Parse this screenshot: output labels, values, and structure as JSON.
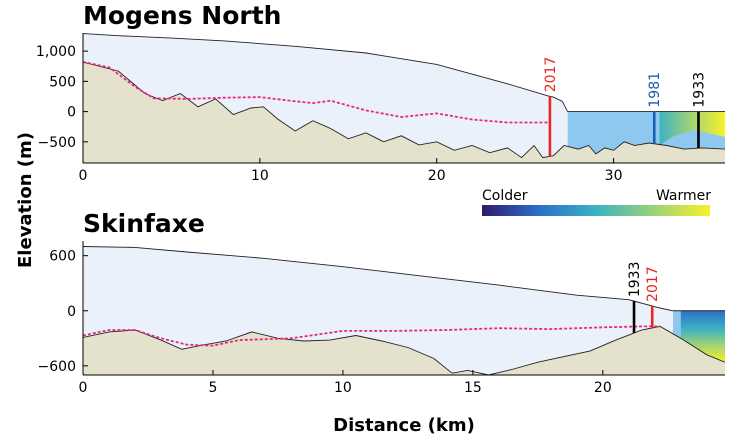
{
  "chart_data": [
    {
      "type": "area",
      "title": "Mogens North",
      "xlabel": "Distance (km)",
      "ylabel": "Elevation (m)",
      "xlim": [
        0,
        36.3
      ],
      "ylim": [
        -850,
        1300
      ],
      "xticks": [
        0,
        10,
        20,
        30
      ],
      "yticks": [
        -500,
        0,
        500,
        1000
      ],
      "ytick_labels": [
        "−500",
        "0",
        "500",
        "1,000"
      ],
      "ice_surface": [
        [
          0,
          1290
        ],
        [
          2,
          1255
        ],
        [
          5,
          1215
        ],
        [
          8,
          1170
        ],
        [
          12,
          1080
        ],
        [
          16,
          970
        ],
        [
          20,
          780
        ],
        [
          24,
          460
        ],
        [
          26.3,
          260
        ],
        [
          26.6,
          240
        ],
        [
          27.1,
          170
        ],
        [
          27.4,
          0
        ]
      ],
      "bed": [
        [
          0,
          820
        ],
        [
          2,
          670
        ],
        [
          3.5,
          300
        ],
        [
          4.5,
          180
        ],
        [
          5.5,
          300
        ],
        [
          6.5,
          80
        ],
        [
          7.5,
          210
        ],
        [
          8.5,
          -50
        ],
        [
          9.5,
          60
        ],
        [
          10.2,
          80
        ],
        [
          11,
          -120
        ],
        [
          12,
          -320
        ],
        [
          13,
          -150
        ],
        [
          14,
          -280
        ],
        [
          15,
          -450
        ],
        [
          16,
          -350
        ],
        [
          17,
          -500
        ],
        [
          18,
          -400
        ],
        [
          19,
          -550
        ],
        [
          20,
          -500
        ],
        [
          21,
          -640
        ],
        [
          22,
          -560
        ],
        [
          23,
          -680
        ],
        [
          24,
          -600
        ],
        [
          24.8,
          -760
        ],
        [
          25.5,
          -560
        ],
        [
          26,
          -760
        ],
        [
          26.6,
          -730
        ],
        [
          27.2,
          -560
        ],
        [
          28,
          -620
        ],
        [
          28.6,
          -560
        ],
        [
          29,
          -700
        ],
        [
          29.5,
          -600
        ],
        [
          30,
          -640
        ],
        [
          30.6,
          -500
        ],
        [
          31.2,
          -560
        ],
        [
          32,
          -520
        ],
        [
          33,
          -560
        ],
        [
          34,
          -620
        ],
        [
          35,
          -600
        ],
        [
          36.3,
          -620
        ]
      ],
      "melt_line": [
        [
          0,
          820
        ],
        [
          1.5,
          730
        ],
        [
          3,
          400
        ],
        [
          4,
          220
        ],
        [
          6,
          210
        ],
        [
          8,
          230
        ],
        [
          10,
          240
        ],
        [
          12,
          170
        ],
        [
          13,
          140
        ],
        [
          14,
          180
        ],
        [
          16,
          20
        ],
        [
          18,
          -90
        ],
        [
          20,
          -30
        ],
        [
          22,
          -130
        ],
        [
          24,
          -180
        ],
        [
          26.4,
          -180
        ]
      ],
      "profiles": [
        {
          "year": "2017",
          "x": 26.4,
          "color": "#e8281e"
        },
        {
          "year": "1981",
          "x": 32.3,
          "color": "#1a5bb5"
        },
        {
          "year": "1933",
          "x": 34.8,
          "color": "#000000"
        }
      ]
    },
    {
      "type": "area",
      "title": "Skinfaxe",
      "xlabel": "Distance (km)",
      "ylabel": "Elevation (m)",
      "xlim": [
        0,
        24.7
      ],
      "ylim": [
        -700,
        760
      ],
      "xticks": [
        0,
        5,
        10,
        15,
        20
      ],
      "yticks": [
        -600,
        0,
        600
      ],
      "ytick_labels": [
        "−600",
        "0",
        "600"
      ],
      "ice_surface": [
        [
          0,
          700
        ],
        [
          2,
          690
        ],
        [
          4,
          640
        ],
        [
          7,
          570
        ],
        [
          10,
          480
        ],
        [
          13,
          380
        ],
        [
          16,
          280
        ],
        [
          19,
          170
        ],
        [
          21,
          120
        ],
        [
          22.2,
          30
        ],
        [
          22.7,
          0
        ]
      ],
      "bed": [
        [
          0,
          -290
        ],
        [
          1,
          -230
        ],
        [
          2,
          -210
        ],
        [
          3,
          -320
        ],
        [
          3.8,
          -420
        ],
        [
          4.5,
          -380
        ],
        [
          5.5,
          -330
        ],
        [
          6.5,
          -230
        ],
        [
          7.5,
          -300
        ],
        [
          8.5,
          -330
        ],
        [
          9.5,
          -320
        ],
        [
          10.5,
          -270
        ],
        [
          11.5,
          -330
        ],
        [
          12.5,
          -400
        ],
        [
          13.5,
          -520
        ],
        [
          14.2,
          -680
        ],
        [
          14.8,
          -650
        ],
        [
          15.6,
          -700
        ],
        [
          16.5,
          -640
        ],
        [
          17.5,
          -560
        ],
        [
          18.5,
          -500
        ],
        [
          19.5,
          -440
        ],
        [
          20.5,
          -320
        ],
        [
          21.5,
          -210
        ],
        [
          22.2,
          -170
        ],
        [
          23,
          -300
        ],
        [
          24,
          -480
        ],
        [
          24.7,
          -560
        ]
      ],
      "melt_line": [
        [
          0,
          -270
        ],
        [
          1,
          -210
        ],
        [
          2,
          -210
        ],
        [
          3,
          -300
        ],
        [
          4,
          -370
        ],
        [
          5,
          -380
        ],
        [
          6,
          -320
        ],
        [
          8,
          -300
        ],
        [
          10,
          -220
        ],
        [
          12,
          -220
        ],
        [
          14,
          -210
        ],
        [
          16,
          -190
        ],
        [
          18,
          -200
        ],
        [
          20,
          -180
        ],
        [
          21.5,
          -170
        ],
        [
          22.2,
          -170
        ]
      ],
      "profiles": [
        {
          "year": "1933",
          "x": 21.2,
          "color": "#000000"
        },
        {
          "year": "2017",
          "x": 21.9,
          "color": "#e8281e"
        }
      ]
    }
  ],
  "colorbar": {
    "low_label": "Colder",
    "high_label": "Warmer",
    "colors": [
      "#2e1b6f",
      "#2c6fc8",
      "#3bb3c2",
      "#9bd17a",
      "#f6f228"
    ]
  },
  "colors": {
    "ice": "#eaf1fb",
    "bed": "#e4e2cc",
    "ocean": "#8fc8ef",
    "melt_line": "#e8287e"
  }
}
